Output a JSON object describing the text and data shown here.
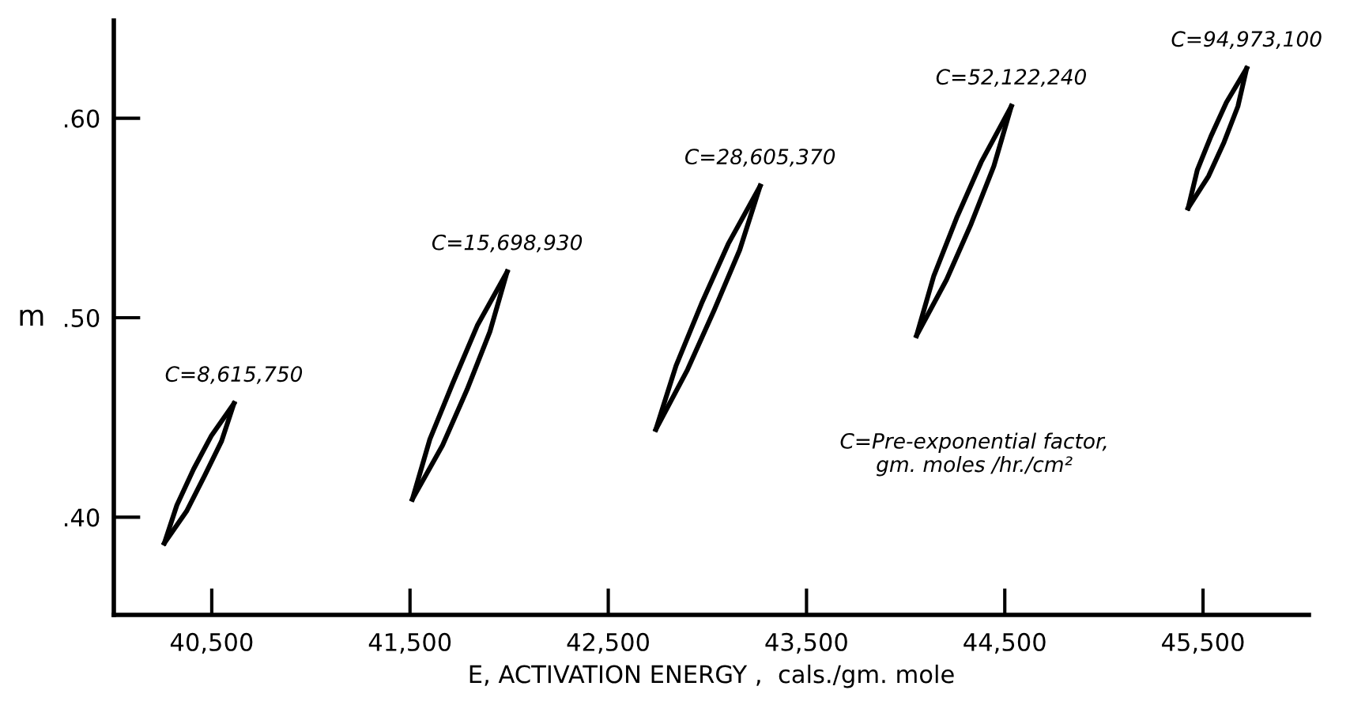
{
  "chart_data": {
    "type": "line",
    "xlabel": "E, ACTIVATION ENERGY ,  cals./gm. mole",
    "ylabel": "m",
    "xlim": [
      40006,
      46034
    ],
    "ylim": [
      0.351,
      0.649
    ],
    "xticks": [
      {
        "value": 40500,
        "label": "40,500"
      },
      {
        "value": 41500,
        "label": "41,500"
      },
      {
        "value": 42500,
        "label": "42,500"
      },
      {
        "value": 43500,
        "label": "43,500"
      },
      {
        "value": 44500,
        "label": "44,500"
      },
      {
        "value": 45500,
        "label": "45,500"
      }
    ],
    "yticks": [
      {
        "value": 0.4,
        "label": ".40"
      },
      {
        "value": 0.5,
        "label": ".50"
      },
      {
        "value": 0.6,
        "label": ".60"
      }
    ],
    "grid": false,
    "marker": "none",
    "line_style": "solid",
    "series": [
      {
        "color": "#000000",
        "x": [
          40261,
          40373,
          40465,
          40549,
          40612
        ],
        "values": [
          0.387,
          0.403,
          0.421,
          0.438,
          0.457
        ]
      },
      {
        "color": "#000000",
        "x": [
          40261,
          40324,
          40408,
          40499,
          40612
        ],
        "values": [
          0.387,
          0.406,
          0.424,
          0.441,
          0.457
        ]
      },
      {
        "color": "#000000",
        "x": [
          41512,
          41664,
          41788,
          41903,
          41990
        ],
        "values": [
          0.409,
          0.436,
          0.464,
          0.493,
          0.523
        ]
      },
      {
        "color": "#000000",
        "x": [
          41512,
          41600,
          41715,
          41839,
          41990
        ],
        "values": [
          0.409,
          0.439,
          0.467,
          0.496,
          0.523
        ]
      },
      {
        "color": "#000000",
        "x": [
          42740,
          42900,
          43035,
          43163,
          43266
        ],
        "values": [
          0.444,
          0.474,
          0.504,
          0.534,
          0.566
        ]
      },
      {
        "color": "#000000",
        "x": [
          42740,
          42842,
          42970,
          43105,
          43266
        ],
        "values": [
          0.444,
          0.476,
          0.507,
          0.537,
          0.566
        ]
      },
      {
        "color": "#000000",
        "x": [
          44055,
          44206,
          44330,
          44445,
          44533
        ],
        "values": [
          0.491,
          0.519,
          0.547,
          0.576,
          0.606
        ]
      },
      {
        "color": "#000000",
        "x": [
          44055,
          44142,
          44257,
          44381,
          44533
        ],
        "values": [
          0.491,
          0.521,
          0.55,
          0.578,
          0.606
        ]
      },
      {
        "color": "#000000",
        "x": [
          45425,
          45528,
          45606,
          45676,
          45720
        ],
        "values": [
          0.555,
          0.571,
          0.588,
          0.606,
          0.625
        ]
      },
      {
        "color": "#000000",
        "x": [
          45425,
          45471,
          45540,
          45618,
          45720
        ],
        "values": [
          0.555,
          0.574,
          0.591,
          0.608,
          0.625
        ]
      }
    ],
    "annotations": [
      "C=8,615,750",
      "C=15,698,930",
      "C=28,605,370",
      "C=52,122,240",
      "C=94,973,100",
      "C=Pre-exponential factor,\ngm. moles /hr./cm²"
    ]
  }
}
